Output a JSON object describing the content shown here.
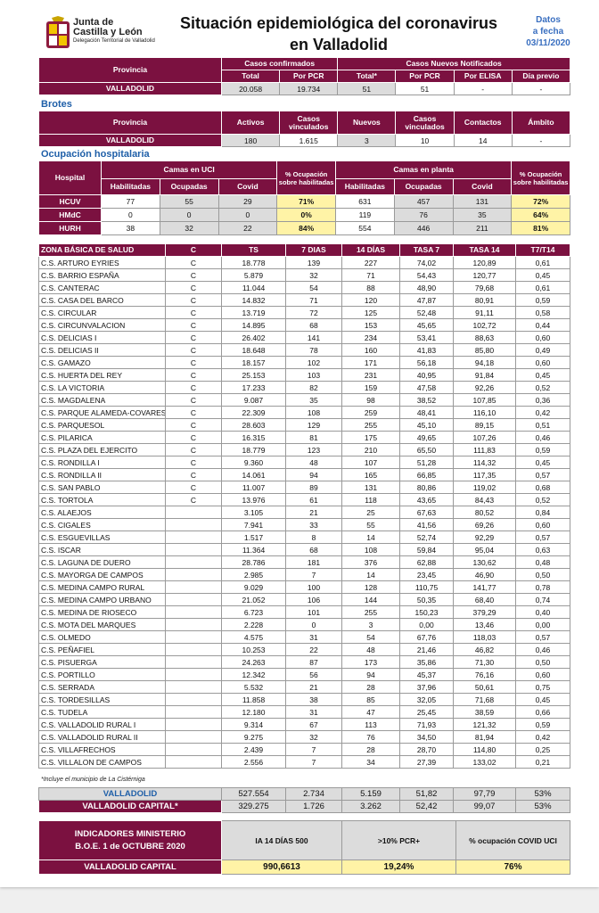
{
  "header": {
    "org": [
      "Junta de",
      "Castilla y León",
      "Delegación Territorial de Valladolid"
    ],
    "title": [
      "Situación epidemiológica del coronavirus",
      "en Valladolid"
    ],
    "date_label": [
      "Datos",
      "a fecha"
    ],
    "date": "03/11/2020"
  },
  "casos": {
    "groups": [
      "Casos confirmados",
      "Casos Nuevos Notificados"
    ],
    "columns": [
      "Provincia",
      "Total",
      "Por PCR",
      "Total*",
      "Por PCR",
      "Por ELISA",
      "Día previo"
    ],
    "row": [
      "VALLADOLID",
      "20.058",
      "19.734",
      "51",
      "51",
      "-",
      "-"
    ]
  },
  "brotes": {
    "title": "Brotes",
    "columns": [
      "Provincia",
      "Activos",
      "Casos vinculados",
      "Nuevos",
      "Casos vinculados",
      "Contactos",
      "Ámbito"
    ],
    "row": [
      "VALLADOLID",
      "180",
      "1.615",
      "3",
      "10",
      "14",
      "-"
    ]
  },
  "ocupacion": {
    "title": "Ocupación hospitalaria",
    "headers": [
      "Hospital",
      "Camas en UCI",
      "% Ocupación sobre habilitadas",
      "Camas en planta",
      "% Ocupación sobre habilitadas"
    ],
    "subcolumns": [
      "Habilitadas",
      "Ocupadas",
      "Covid",
      "Habilitadas",
      "Ocupadas",
      "Covid"
    ],
    "rows": [
      [
        "HCUV",
        "77",
        "55",
        "29",
        "71%",
        "631",
        "457",
        "131",
        "72%"
      ],
      [
        "HMdC",
        "0",
        "0",
        "0",
        "0%",
        "119",
        "76",
        "35",
        "64%"
      ],
      [
        "HURH",
        "38",
        "32",
        "22",
        "84%",
        "554",
        "446",
        "211",
        "81%"
      ]
    ]
  },
  "zonas": {
    "columns": [
      "ZONA BÁSICA DE SALUD",
      "C",
      "TS",
      "7 DIAS",
      "14 DÍAS",
      "TASA 7",
      "TASA 14",
      "T7/T14"
    ],
    "rows": [
      [
        "C.S. ARTURO EYRIES",
        "C",
        "18.778",
        "139",
        "227",
        "74,02",
        "120,89",
        "0,61"
      ],
      [
        "C.S. BARRIO ESPAÑA",
        "C",
        "5.879",
        "32",
        "71",
        "54,43",
        "120,77",
        "0,45"
      ],
      [
        "C.S. CANTERAC",
        "C",
        "11.044",
        "54",
        "88",
        "48,90",
        "79,68",
        "0,61"
      ],
      [
        "C.S. CASA DEL BARCO",
        "C",
        "14.832",
        "71",
        "120",
        "47,87",
        "80,91",
        "0,59"
      ],
      [
        "C.S. CIRCULAR",
        "C",
        "13.719",
        "72",
        "125",
        "52,48",
        "91,11",
        "0,58"
      ],
      [
        "C.S. CIRCUNVALACION",
        "C",
        "14.895",
        "68",
        "153",
        "45,65",
        "102,72",
        "0,44"
      ],
      [
        "C.S. DELICIAS I",
        "C",
        "26.402",
        "141",
        "234",
        "53,41",
        "88,63",
        "0,60"
      ],
      [
        "C.S. DELICIAS II",
        "C",
        "18.648",
        "78",
        "160",
        "41,83",
        "85,80",
        "0,49"
      ],
      [
        "C.S. GAMAZO",
        "C",
        "18.157",
        "102",
        "171",
        "56,18",
        "94,18",
        "0,60"
      ],
      [
        "C.S. HUERTA DEL REY",
        "C",
        "25.153",
        "103",
        "231",
        "40,95",
        "91,84",
        "0,45"
      ],
      [
        "C.S. LA VICTORIA",
        "C",
        "17.233",
        "82",
        "159",
        "47,58",
        "92,26",
        "0,52"
      ],
      [
        "C.S. MAGDALENA",
        "C",
        "9.087",
        "35",
        "98",
        "38,52",
        "107,85",
        "0,36"
      ],
      [
        "C.S. PARQUE ALAMEDA-COVARES",
        "C",
        "22.309",
        "108",
        "259",
        "48,41",
        "116,10",
        "0,42"
      ],
      [
        "C.S. PARQUESOL",
        "C",
        "28.603",
        "129",
        "255",
        "45,10",
        "89,15",
        "0,51"
      ],
      [
        "C.S. PILARICA",
        "C",
        "16.315",
        "81",
        "175",
        "49,65",
        "107,26",
        "0,46"
      ],
      [
        "C.S. PLAZA DEL EJERCITO",
        "C",
        "18.779",
        "123",
        "210",
        "65,50",
        "111,83",
        "0,59"
      ],
      [
        "C.S. RONDILLA I",
        "C",
        "9.360",
        "48",
        "107",
        "51,28",
        "114,32",
        "0,45"
      ],
      [
        "C.S. RONDILLA II",
        "C",
        "14.061",
        "94",
        "165",
        "66,85",
        "117,35",
        "0,57"
      ],
      [
        "C.S. SAN PABLO",
        "C",
        "11.007",
        "89",
        "131",
        "80,86",
        "119,02",
        "0,68"
      ],
      [
        "C.S. TORTOLA",
        "C",
        "13.976",
        "61",
        "118",
        "43,65",
        "84,43",
        "0,52"
      ],
      [
        "C.S. ALAEJOS",
        null,
        "3.105",
        "21",
        "25",
        "67,63",
        "80,52",
        "0,84"
      ],
      [
        "C.S. CIGALES",
        null,
        "7.941",
        "33",
        "55",
        "41,56",
        "69,26",
        "0,60"
      ],
      [
        "C.S. ESGUEVILLAS",
        null,
        "1.517",
        "8",
        "14",
        "52,74",
        "92,29",
        "0,57"
      ],
      [
        "C.S. ISCAR",
        null,
        "11.364",
        "68",
        "108",
        "59,84",
        "95,04",
        "0,63"
      ],
      [
        "C.S. LAGUNA DE DUERO",
        null,
        "28.786",
        "181",
        "376",
        "62,88",
        "130,62",
        "0,48"
      ],
      [
        "C.S. MAYORGA DE CAMPOS",
        null,
        "2.985",
        "7",
        "14",
        "23,45",
        "46,90",
        "0,50"
      ],
      [
        "C.S. MEDINA CAMPO RURAL",
        null,
        "9.029",
        "100",
        "128",
        "110,75",
        "141,77",
        "0,78"
      ],
      [
        "C.S. MEDINA CAMPO URBANO",
        null,
        "21.052",
        "106",
        "144",
        "50,35",
        "68,40",
        "0,74"
      ],
      [
        "C.S. MEDINA DE RIOSECO",
        null,
        "6.723",
        "101",
        "255",
        "150,23",
        "379,29",
        "0,40"
      ],
      [
        "C.S. MOTA DEL MARQUES",
        null,
        "2.228",
        "0",
        "3",
        "0,00",
        "13,46",
        "0,00"
      ],
      [
        "C.S. OLMEDO",
        null,
        "4.575",
        "31",
        "54",
        "67,76",
        "118,03",
        "0,57"
      ],
      [
        "C.S. PEÑAFIEL",
        null,
        "10.253",
        "22",
        "48",
        "21,46",
        "46,82",
        "0,46"
      ],
      [
        "C.S. PISUERGA",
        null,
        "24.263",
        "87",
        "173",
        "35,86",
        "71,30",
        "0,50"
      ],
      [
        "C.S. PORTILLO",
        null,
        "12.342",
        "56",
        "94",
        "45,37",
        "76,16",
        "0,60"
      ],
      [
        "C.S. SERRADA",
        null,
        "5.532",
        "21",
        "28",
        "37,96",
        "50,61",
        "0,75"
      ],
      [
        "C.S. TORDESILLAS",
        null,
        "11.858",
        "38",
        "85",
        "32,05",
        "71,68",
        "0,45"
      ],
      [
        "C.S. TUDELA",
        null,
        "12.180",
        "31",
        "47",
        "25,45",
        "38,59",
        "0,66"
      ],
      [
        "C.S. VALLADOLID RURAL I",
        null,
        "9.314",
        "67",
        "113",
        "71,93",
        "121,32",
        "0,59"
      ],
      [
        "C.S. VALLADOLID RURAL II",
        null,
        "9.275",
        "32",
        "76",
        "34,50",
        "81,94",
        "0,42"
      ],
      [
        "C.S. VILLAFRECHOS",
        null,
        "2.439",
        "7",
        "28",
        "28,70",
        "114,80",
        "0,25"
      ],
      [
        "C.S. VILLALON DE CAMPOS",
        null,
        "2.556",
        "7",
        "34",
        "27,39",
        "133,02",
        "0,21"
      ]
    ],
    "note": "*Incluye el municipio de La Cistérniga"
  },
  "totales": [
    [
      "VALLADOLID",
      "527.554",
      "2.734",
      "5.159",
      "51,82",
      "97,79",
      "53%"
    ],
    [
      "VALLADOLID CAPITAL*",
      "329.275",
      "1.726",
      "3.262",
      "52,42",
      "99,07",
      "53%"
    ]
  ],
  "indicadores": {
    "title": "INDICADORES MINISTERIO",
    "subtitle": "B.O.E.   1 de OCTUBRE 2020",
    "columns": [
      "IA 14 DÍAS 500",
      ">10% PCR+",
      "% ocupación COVID UCI"
    ],
    "row": [
      "VALLADOLID CAPITAL",
      "990,6613",
      "19,24%",
      "76%"
    ]
  }
}
